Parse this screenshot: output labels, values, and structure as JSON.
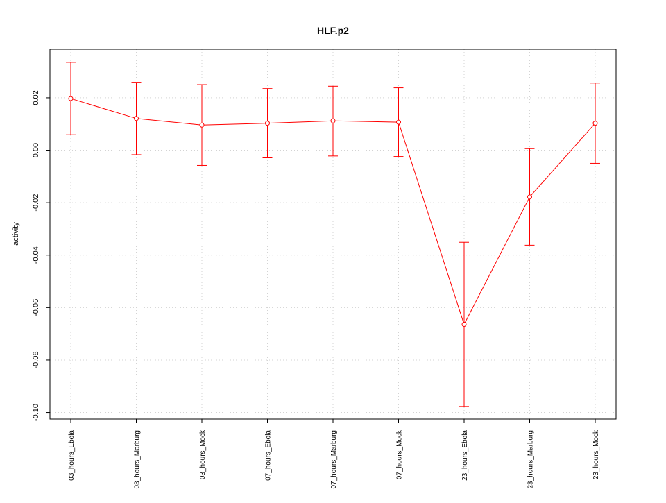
{
  "chart_data": {
    "type": "line",
    "title": "HLF.p2",
    "xlabel": "",
    "ylabel": "activity",
    "categories": [
      "03_hours_Ebola",
      "03_hours_Marburg",
      "03_hours_Mock",
      "07_hours_Ebola",
      "07_hours_Marburg",
      "07_hours_Mock",
      "23_hours_Ebola",
      "23_hours_Marburg",
      "23_hours_Mock"
    ],
    "series": [
      {
        "values": [
          0.0197,
          0.0121,
          0.0096,
          0.0103,
          0.0112,
          0.0107,
          -0.0664,
          -0.0178,
          0.0103
        ],
        "lower": [
          0.0059,
          -0.0017,
          -0.0058,
          -0.0029,
          -0.0022,
          -0.0024,
          -0.0977,
          -0.0362,
          -0.005
        ],
        "upper": [
          0.0335,
          0.0259,
          0.025,
          0.0235,
          0.0244,
          0.0238,
          -0.0351,
          0.0006,
          0.0256
        ],
        "color": "#ff0000"
      }
    ],
    "yticks": [
      0.02,
      0.0,
      -0.02,
      -0.04,
      -0.06,
      -0.08,
      -0.1
    ],
    "ytick_labels": [
      "0.02",
      "0.00",
      "-0.02",
      "-0.04",
      "-0.06",
      "-0.08",
      "-0.10"
    ],
    "ylim": [
      -0.1025,
      0.0385
    ],
    "grid": true,
    "legend": "none"
  }
}
